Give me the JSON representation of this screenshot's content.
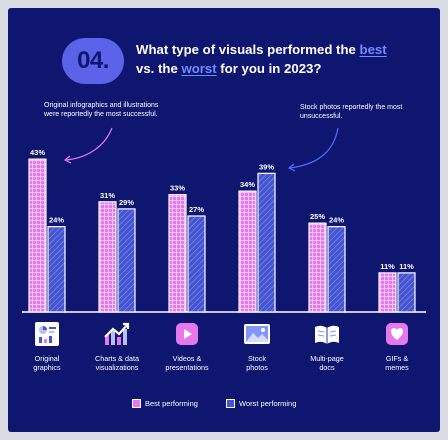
{
  "badge": "04.",
  "title": {
    "part1": "What type of visuals performed the",
    "best": "best",
    "part2": " vs. the ",
    "worst": "worst",
    "part3": " for you in 2023?"
  },
  "notes": {
    "best": "Original infographics and illustrations were reportedly the most successful.",
    "worst": "Stock photos reportedly the most unsuccessful."
  },
  "colors": {
    "background": "#0e1670",
    "best": "#e777ef",
    "worst": "#4655cf",
    "highlight": "#6f8bff"
  },
  "chart_data": {
    "type": "bar",
    "title": "What type of visuals performed the best vs. the worst for you in 2023?",
    "categories": [
      "Original graphics",
      "Charts & data visualizations",
      "Videos & presentations",
      "Stock photos",
      "Multi-page docs",
      "GIFs & memes"
    ],
    "category_labels": [
      [
        "Original",
        "graphics"
      ],
      [
        "Charts & data",
        "visualizations"
      ],
      [
        "Videos &",
        "presentations"
      ],
      [
        "Stock",
        "photos"
      ],
      [
        "Multi-page",
        "docs"
      ],
      [
        "GIFs &",
        "memes"
      ]
    ],
    "icons": [
      "infographic-icon",
      "trend-chart-icon",
      "play-video-icon",
      "photo-icon",
      "open-book-icon",
      "heart-gif-icon"
    ],
    "series": [
      {
        "name": "Best performing",
        "values": [
          43,
          31,
          33,
          34,
          25,
          11
        ],
        "labels": [
          "43%",
          "31%",
          "33%",
          "34%",
          "25%",
          "11%"
        ]
      },
      {
        "name": "Worst performing",
        "values": [
          24,
          29,
          27,
          39,
          24,
          11
        ],
        "labels": [
          "24%",
          "29%",
          "27%",
          "39%",
          "24%",
          "11%"
        ]
      }
    ],
    "ylim": [
      0,
      45
    ],
    "legend": "bottom-center",
    "grid": false
  }
}
